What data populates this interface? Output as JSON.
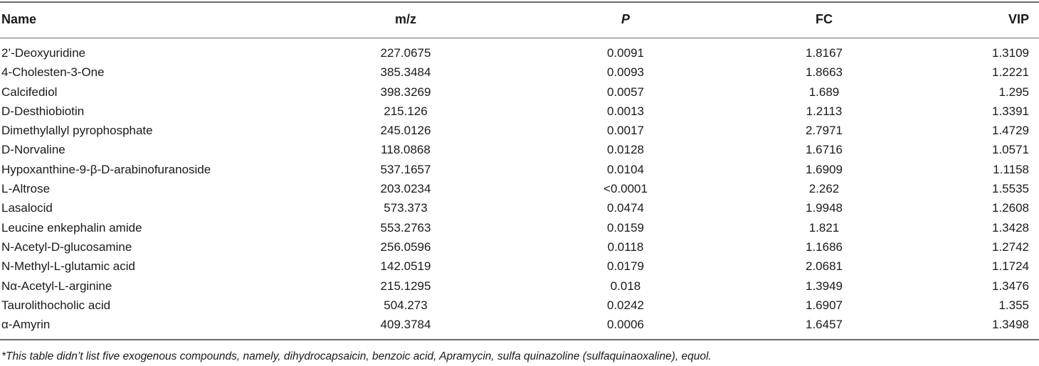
{
  "table": {
    "headers": {
      "name": "Name",
      "mz": "m/z",
      "p": "P",
      "fc": "FC",
      "vip": "VIP"
    },
    "rows": [
      {
        "name": "2’-Deoxyuridine",
        "mz": "227.0675",
        "p": "0.0091",
        "fc": "1.8167",
        "vip": "1.3109"
      },
      {
        "name": "4-Cholesten-3-One",
        "mz": "385.3484",
        "p": "0.0093",
        "fc": "1.8663",
        "vip": "1.2221"
      },
      {
        "name": "Calcifediol",
        "mz": "398.3269",
        "p": "0.0057",
        "fc": "1.689",
        "vip": "1.295"
      },
      {
        "name": "D-Desthiobiotin",
        "mz": "215.126",
        "p": "0.0013",
        "fc": "1.2113",
        "vip": "1.3391"
      },
      {
        "name": "Dimethylallyl pyrophosphate",
        "mz": "245.0126",
        "p": "0.0017",
        "fc": "2.7971",
        "vip": "1.4729"
      },
      {
        "name": "D-Norvaline",
        "mz": "118.0868",
        "p": "0.0128",
        "fc": "1.6716",
        "vip": "1.0571"
      },
      {
        "name": "Hypoxanthine-9-β-D-arabinofuranoside",
        "mz": "537.1657",
        "p": "0.0104",
        "fc": "1.6909",
        "vip": "1.1158"
      },
      {
        "name": "L-Altrose",
        "mz": "203.0234",
        "p": "<0.0001",
        "fc": "2.262",
        "vip": "1.5535"
      },
      {
        "name": "Lasalocid",
        "mz": "573.373",
        "p": "0.0474",
        "fc": "1.9948",
        "vip": "1.2608"
      },
      {
        "name": "Leucine enkephalin amide",
        "mz": "553.2763",
        "p": "0.0159",
        "fc": "1.821",
        "vip": "1.3428"
      },
      {
        "name": "N-Acetyl-D-glucosamine",
        "mz": "256.0596",
        "p": "0.0118",
        "fc": "1.1686",
        "vip": "1.2742"
      },
      {
        "name": "N-Methyl-L-glutamic acid",
        "mz": "142.0519",
        "p": "0.0179",
        "fc": "2.0681",
        "vip": "1.1724"
      },
      {
        "name": "Nα-Acetyl-L-arginine",
        "mz": "215.1295",
        "p": "0.018",
        "fc": "1.3949",
        "vip": "1.3476"
      },
      {
        "name": "Taurolithocholic acid",
        "mz": "504.273",
        "p": "0.0242",
        "fc": "1.6907",
        "vip": "1.355"
      },
      {
        "name": "α-Amyrin",
        "mz": "409.3784",
        "p": "0.0006",
        "fc": "1.6457",
        "vip": "1.3498"
      }
    ]
  },
  "footnote": "*This table didn’t list five exogenous compounds, namely, dihydrocapsaicin, benzoic acid, Apramycin, sulfa quinazoline (sulfaquinaoxaline), equol."
}
